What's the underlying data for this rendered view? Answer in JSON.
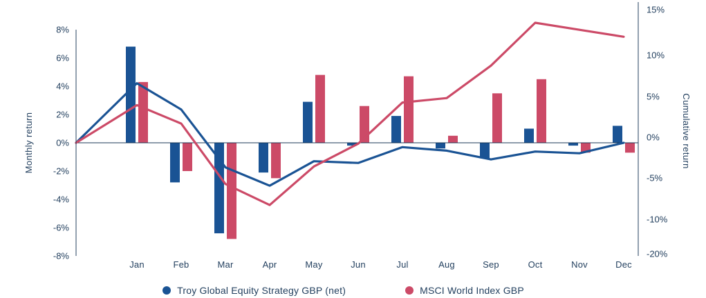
{
  "colors": {
    "troy_blue": "#1A5394",
    "msci_red": "#CC4A67",
    "text": "#223F5E",
    "axis_line": "#24425F",
    "zero_line": "#1B3A57",
    "background": "#FFFFFF"
  },
  "left_axis": {
    "title": "Monthly return",
    "ticks": [
      "8%",
      "6%",
      "4%",
      "2%",
      "0%",
      "-2%",
      "-4%",
      "-6%",
      "-8%"
    ]
  },
  "right_axis": {
    "title": "Cumulative return",
    "ticks": [
      "15%",
      "10%",
      "5%",
      "0%",
      "-5%",
      "-10%",
      "-20%"
    ]
  },
  "legend": [
    {
      "label": "Troy Global Equity Strategy GBP (net)",
      "color": "#1A5394",
      "marker": "circle"
    },
    {
      "label": "MSCI World Index GBP",
      "color": "#CC4A67",
      "marker": "circle"
    }
  ],
  "chart_data": {
    "type": "combo_bar_line_dual_axis",
    "categories": [
      "Jan",
      "Feb",
      "Mar",
      "Apr",
      "May",
      "Jun",
      "Jul",
      "Aug",
      "Sep",
      "Oct",
      "Nov",
      "Dec"
    ],
    "bar_series": [
      {
        "id": "troy-monthly",
        "name": "Troy Global Equity Strategy GBP (net)",
        "axis": "left",
        "unit": "%",
        "color": "#1A5394",
        "values": [
          6.8,
          -2.8,
          -6.4,
          -2.1,
          2.9,
          -0.2,
          1.9,
          -0.4,
          -1.1,
          1.0,
          -0.2,
          1.2
        ]
      },
      {
        "id": "msci-monthly",
        "name": "MSCI World Index GBP",
        "axis": "left",
        "unit": "%",
        "color": "#CC4A67",
        "values": [
          4.3,
          -2.0,
          -6.8,
          -2.5,
          4.8,
          2.6,
          4.7,
          0.5,
          3.5,
          4.5,
          -0.7,
          -0.7
        ]
      }
    ],
    "line_series": [
      {
        "id": "troy-cumulative",
        "name": "Troy Global Equity Strategy GBP (net) cumulative",
        "axis": "right",
        "unit": "%",
        "color": "#1A5394",
        "start_value": 0,
        "values": [
          6.8,
          3.8,
          -2.8,
          -4.9,
          -2.1,
          -2.3,
          -0.5,
          -0.9,
          -1.9,
          -1.0,
          -1.2,
          0.0
        ]
      },
      {
        "id": "msci-cumulative",
        "name": "MSCI World Index GBP cumulative",
        "axis": "right",
        "unit": "%",
        "color": "#CC4A67",
        "start_value": 0,
        "values": [
          4.3,
          2.2,
          -4.7,
          -7.1,
          -2.7,
          -0.1,
          4.6,
          5.1,
          8.8,
          13.7,
          12.9,
          12.1
        ]
      }
    ],
    "left_axis": {
      "label": "Monthly return",
      "range": [
        -8,
        8
      ],
      "tick_step": 2,
      "applies_to": "bars"
    },
    "right_axis": {
      "label": "Cumulative return",
      "tick_labels": [
        15,
        10,
        5,
        0,
        -5,
        -10,
        -20
      ],
      "applies_to": "lines"
    },
    "grid": false,
    "legend_position": "bottom"
  }
}
